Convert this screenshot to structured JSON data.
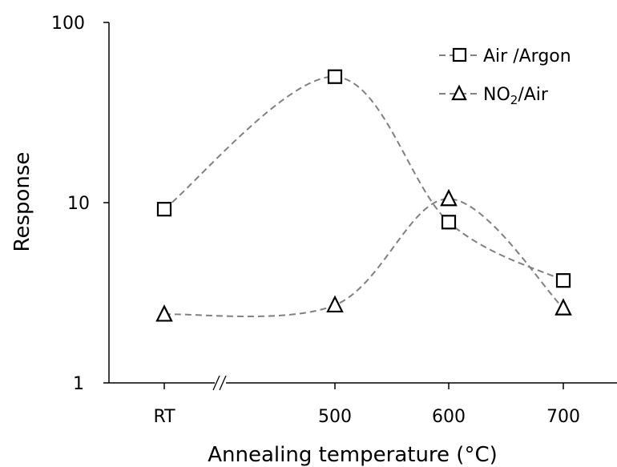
{
  "chart_data": {
    "type": "line",
    "xlabel": "Annealing temperature (°C)",
    "ylabel": "Response",
    "y_scale": "log",
    "ylim": [
      1,
      100
    ],
    "y_ticks": [
      "1",
      "10",
      "100"
    ],
    "x_categories": [
      "RT",
      "500",
      "600",
      "700"
    ],
    "x_axis_break": "//",
    "line_style": "dashed gray, smoothed",
    "grid": false,
    "legend_position": "top-right",
    "series": [
      {
        "name": "Air /Argon",
        "marker": "square",
        "points": [
          {
            "x": "RT",
            "y": 9.2
          },
          {
            "x": "500",
            "y": 50
          },
          {
            "x": "600",
            "y": 7.8
          },
          {
            "x": "700",
            "y": 3.7
          }
        ]
      },
      {
        "name": "/Air",
        "name_prefix": "NO",
        "name_subscript": "2",
        "marker": "triangle",
        "points": [
          {
            "x": "RT",
            "y": 2.4
          },
          {
            "x": "500",
            "y": 2.7
          },
          {
            "x": "600",
            "y": 10.5
          },
          {
            "x": "700",
            "y": 2.6
          }
        ]
      }
    ],
    "colors": {
      "line": "#808080",
      "marker_stroke": "#000000",
      "axis": "#000000"
    }
  }
}
